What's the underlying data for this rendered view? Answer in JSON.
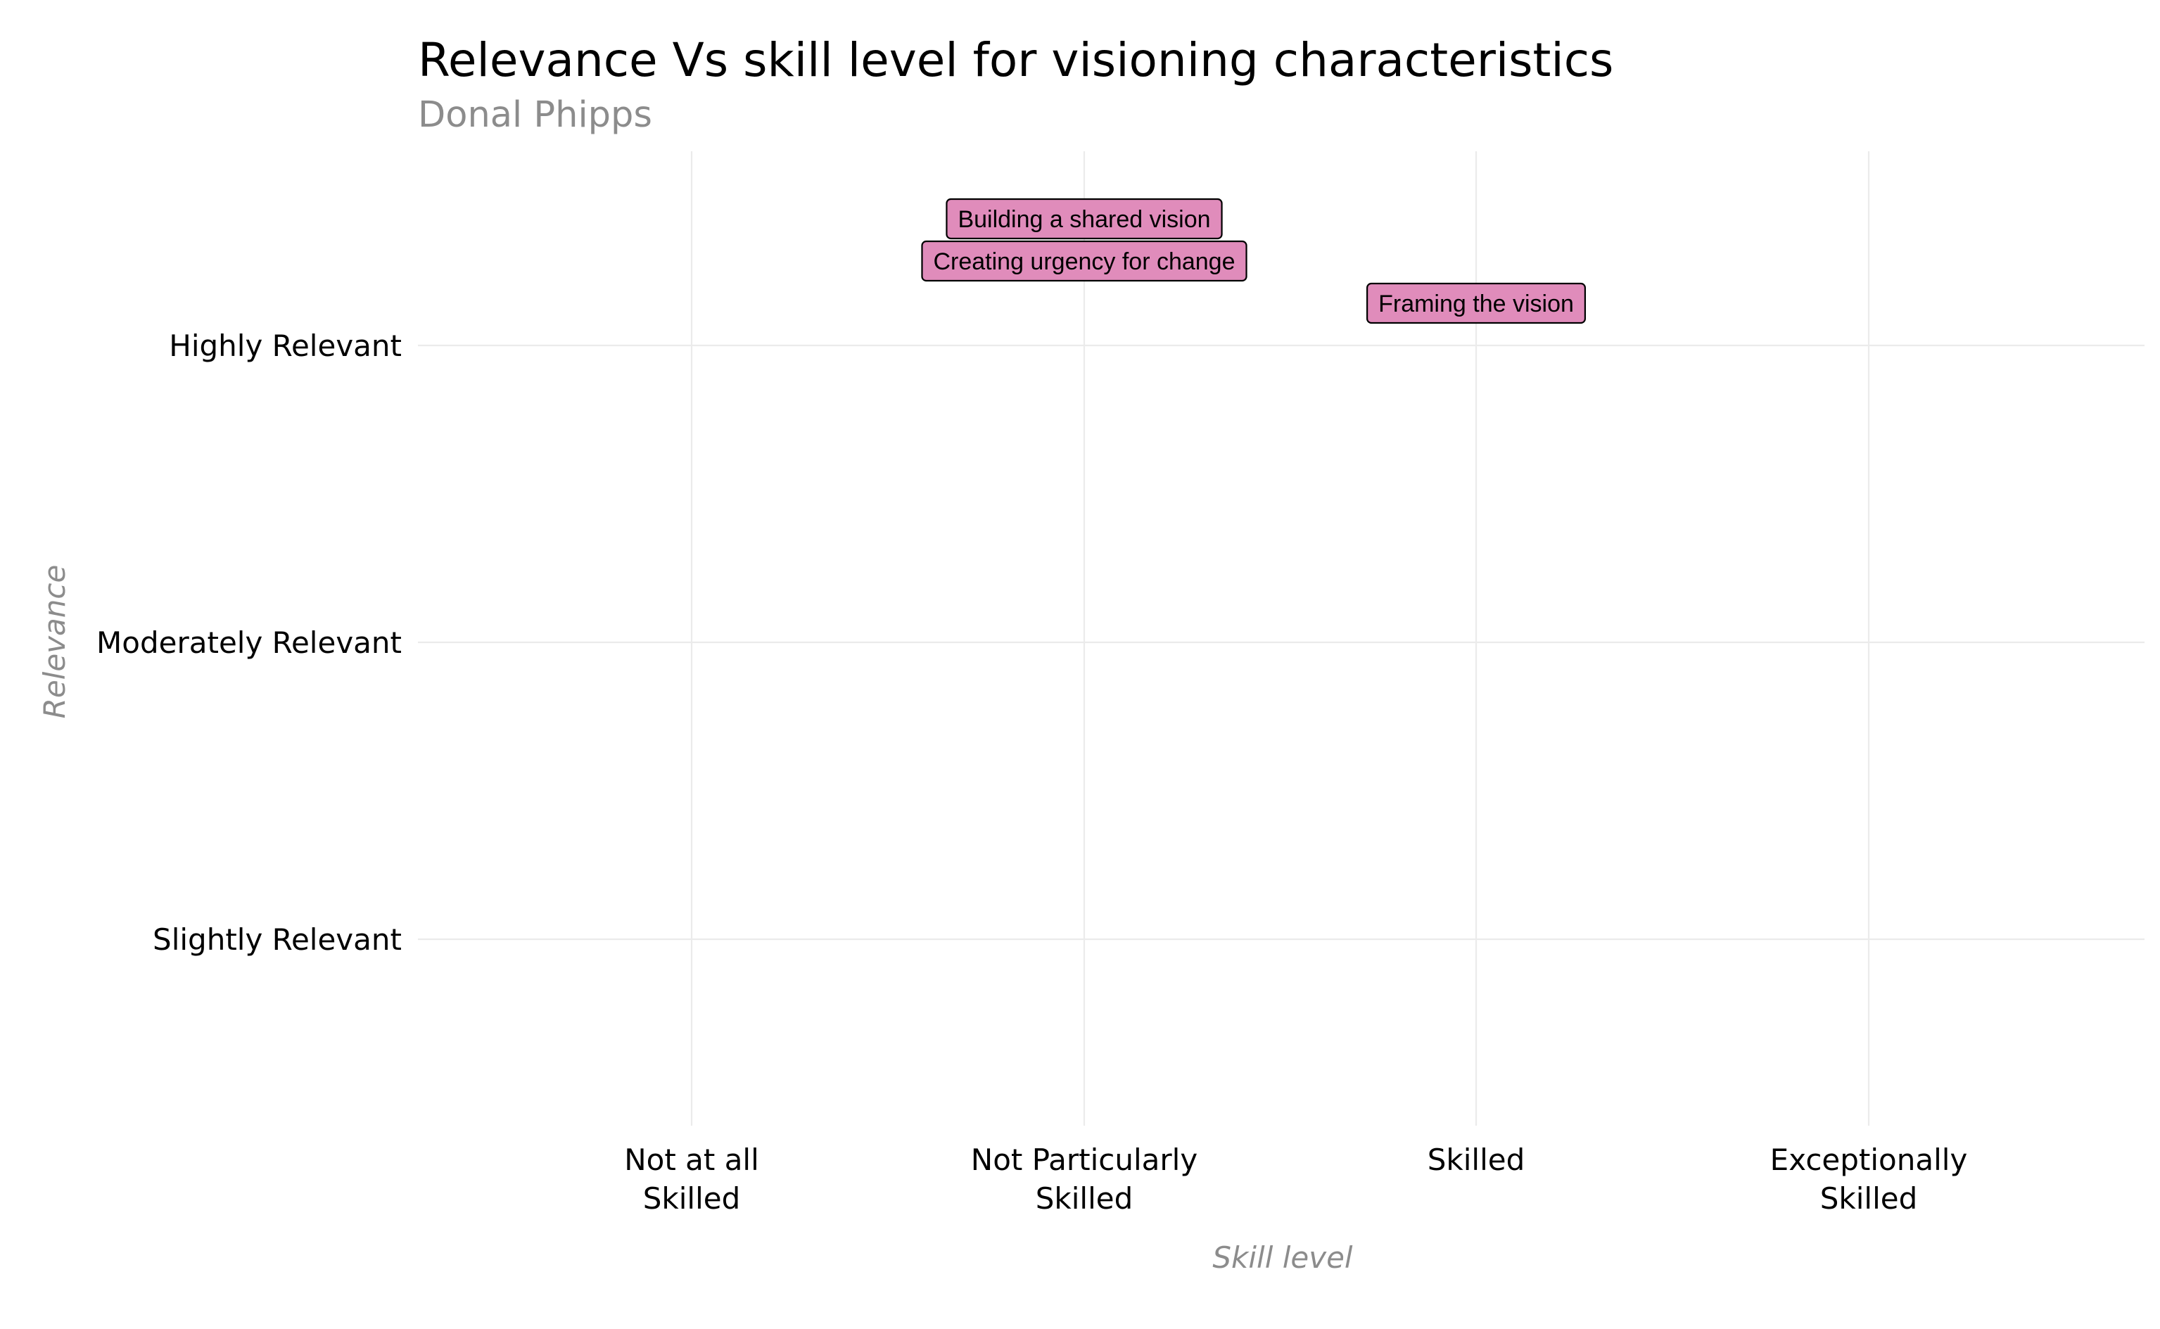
{
  "chart_data": {
    "type": "scatter",
    "title": "Relevance Vs skill level for visioning characteristics",
    "subtitle": "Donal Phipps",
    "xlabel": "Skill level",
    "ylabel": "Relevance",
    "x_categories": [
      "Not at all\nSkilled",
      "Not Particularly\nSkilled",
      "Skilled",
      "Exceptionally\nSkilled"
    ],
    "y_categories": [
      "Slightly Relevant",
      "Moderately Relevant",
      "Highly Relevant"
    ],
    "grid": true,
    "legend": "none",
    "label_color": "#e08cbb",
    "points": [
      {
        "label": "Building a shared vision",
        "x": "Not Particularly\nSkilled",
        "y": "Highly Relevant"
      },
      {
        "label": "Creating urgency for change",
        "x": "Not Particularly\nSkilled",
        "y": "Highly Relevant"
      },
      {
        "label": "Framing the vision",
        "x": "Skilled",
        "y": "Highly Relevant"
      }
    ]
  }
}
